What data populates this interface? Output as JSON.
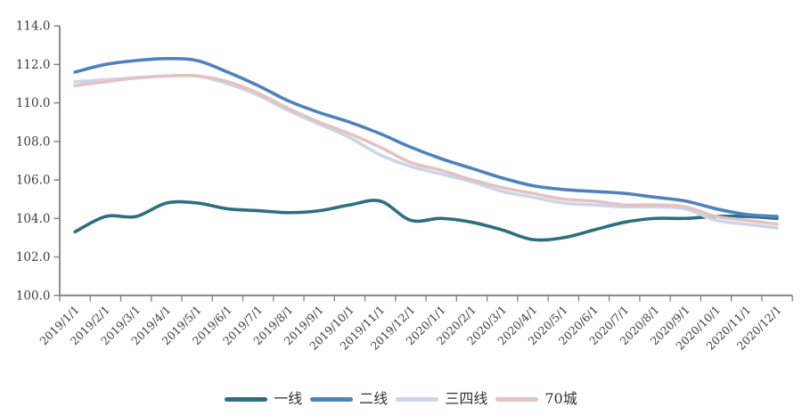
{
  "chart_data": {
    "type": "line",
    "title": "",
    "xlabel": "",
    "ylabel": "",
    "categories": [
      "2019/1/1",
      "2019/2/1",
      "2019/3/1",
      "2019/4/1",
      "2019/5/1",
      "2019/6/1",
      "2019/7/1",
      "2019/8/1",
      "2019/9/1",
      "2019/10/1",
      "2019/11/1",
      "2019/12/1",
      "2020/1/1",
      "2020/2/1",
      "2020/3/1",
      "2020/4/1",
      "2020/5/1",
      "2020/6/1",
      "2020/7/1",
      "2020/8/1",
      "2020/9/1",
      "2020/10/1",
      "2020/11/1",
      "2020/12/1"
    ],
    "series": [
      {
        "key": "tier1",
        "name": "一线",
        "color": "#2d6e80",
        "values": [
          103.3,
          104.1,
          104.1,
          104.8,
          104.8,
          104.5,
          104.4,
          104.3,
          104.4,
          104.7,
          104.9,
          103.9,
          104.0,
          103.8,
          103.4,
          102.9,
          103.0,
          103.4,
          103.8,
          104.0,
          104.0,
          104.1,
          104.1,
          104.0
        ]
      },
      {
        "key": "tier2",
        "name": "二线",
        "color": "#4f81bd",
        "values": [
          111.6,
          112.0,
          112.2,
          112.3,
          112.2,
          111.6,
          110.9,
          110.1,
          109.5,
          109.0,
          108.4,
          107.7,
          107.1,
          106.6,
          106.1,
          105.7,
          105.5,
          105.4,
          105.3,
          105.1,
          104.9,
          104.5,
          104.2,
          104.1
        ]
      },
      {
        "key": "tier34",
        "name": "三四线",
        "color": "#ccd5e7",
        "values": [
          111.1,
          111.2,
          111.3,
          111.4,
          111.4,
          111.0,
          110.4,
          109.6,
          108.9,
          108.2,
          107.3,
          106.7,
          106.3,
          105.9,
          105.4,
          105.1,
          104.8,
          104.7,
          104.6,
          104.6,
          104.5,
          103.9,
          103.7,
          103.5
        ]
      },
      {
        "key": "cities70",
        "name": "70城",
        "color": "#e3c3c2",
        "values": [
          110.9,
          111.1,
          111.3,
          111.4,
          111.4,
          111.1,
          110.5,
          109.7,
          109.0,
          108.4,
          107.7,
          106.9,
          106.5,
          106.0,
          105.6,
          105.3,
          105.0,
          104.9,
          104.7,
          104.7,
          104.6,
          104.1,
          103.9,
          103.7
        ]
      }
    ],
    "ylim": [
      100,
      114
    ],
    "y_tick_step": 2,
    "y_tick_decimals": 1,
    "grid": false,
    "smooth": true,
    "legend_position": "bottom",
    "axis_color": "#7f7f7f",
    "text_color": "#3d3d3d"
  }
}
